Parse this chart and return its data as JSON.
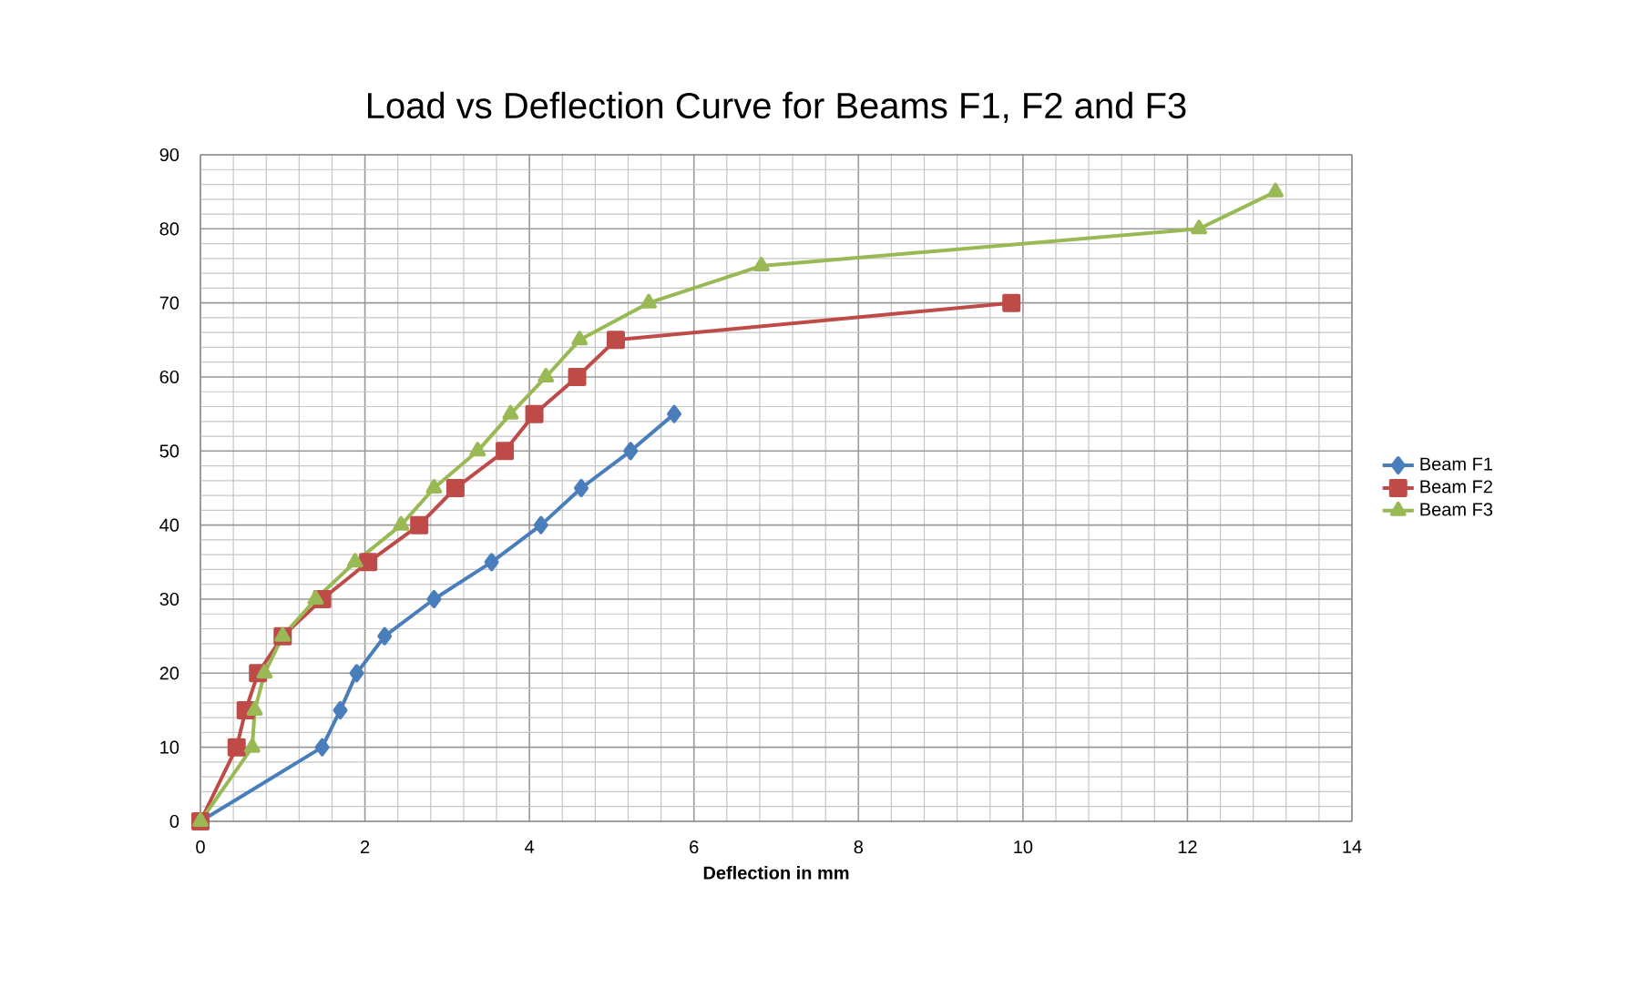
{
  "chart_data": {
    "type": "line",
    "title": "Load vs Deflection Curve for Beams F1, F2 and F3",
    "xlabel": "Deflection in mm",
    "xlim": [
      0,
      14
    ],
    "ylim": [
      0,
      90
    ],
    "xticks": [
      0,
      2,
      4,
      6,
      8,
      10,
      12,
      14
    ],
    "yticks": [
      0,
      10,
      20,
      30,
      40,
      50,
      60,
      70,
      80,
      90
    ],
    "grid": true,
    "legend": "right",
    "series": [
      {
        "name": "Beam F1",
        "color": "#4a7ebb",
        "marker": "diamond",
        "x": [
          0,
          1.48,
          1.7,
          1.9,
          2.24,
          2.84,
          3.54,
          4.14,
          4.63,
          5.23,
          5.76
        ],
        "values": [
          0,
          10,
          15,
          20,
          25,
          30,
          35,
          40,
          45,
          50,
          55
        ]
      },
      {
        "name": "Beam F2",
        "color": "#be4b48",
        "marker": "square",
        "x": [
          0,
          0.44,
          0.55,
          0.7,
          1.0,
          1.48,
          2.04,
          2.66,
          3.1,
          3.7,
          4.06,
          4.58,
          5.05,
          9.86
        ],
        "values": [
          0,
          10,
          15,
          20,
          25,
          30,
          35,
          40,
          45,
          50,
          55,
          60,
          65,
          70
        ]
      },
      {
        "name": "Beam F3",
        "color": "#98b954",
        "marker": "triangle",
        "x": [
          0,
          0.63,
          0.66,
          0.78,
          1.0,
          1.4,
          1.88,
          2.44,
          2.84,
          3.37,
          3.77,
          4.2,
          4.61,
          5.45,
          6.82,
          12.14,
          13.07
        ],
        "values": [
          0,
          10,
          15,
          20,
          25,
          30,
          35,
          40,
          45,
          50,
          55,
          60,
          65,
          70,
          75,
          80,
          85
        ]
      }
    ]
  }
}
